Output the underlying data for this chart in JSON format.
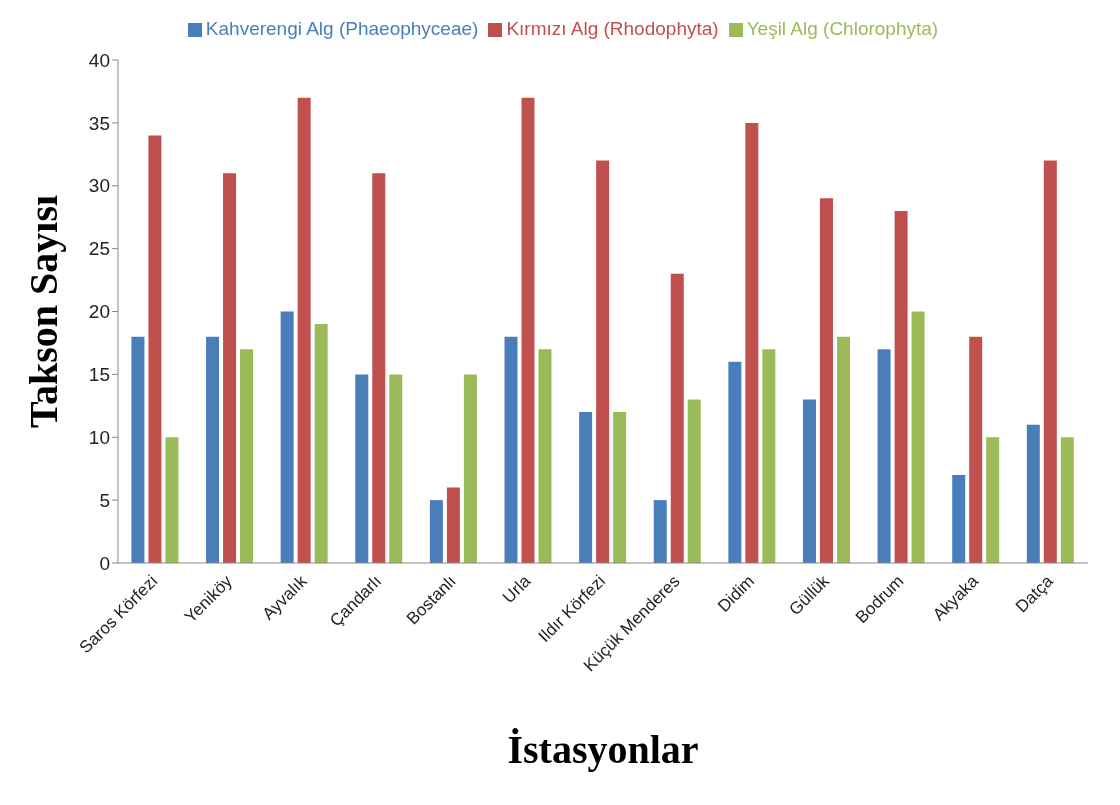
{
  "chart_data": {
    "type": "bar",
    "xlabel": "İstasyonlar",
    "ylabel": "Takson Sayısı",
    "categories": [
      "Saros Körfezi",
      "Yeniköy",
      "Ayvalık",
      "Çandarlı",
      "Bostanlı",
      "Urla",
      "Ildır Körfezi",
      "Küçük Menderes",
      "Didim",
      "Güllük",
      "Bodrum",
      "Akyaka",
      "Datça"
    ],
    "series": [
      {
        "name": "Kahverengi Alg (Phaeophyceae)",
        "color": "#4a7ebb",
        "values": [
          18,
          18,
          20,
          15,
          5,
          18,
          12,
          5,
          16,
          13,
          17,
          7,
          11
        ]
      },
      {
        "name": "Kırmızı Alg (Rhodophyta)",
        "color": "#c0504d",
        "values": [
          34,
          31,
          37,
          31,
          6,
          37,
          32,
          23,
          35,
          29,
          28,
          18,
          32
        ]
      },
      {
        "name": "Yeşil Alg (Chlorophyta)",
        "color": "#9bbb59",
        "values": [
          10,
          17,
          19,
          15,
          15,
          17,
          12,
          13,
          17,
          18,
          20,
          10,
          10
        ]
      }
    ],
    "ylim": [
      0,
      40
    ],
    "yticks": [
      0,
      5,
      10,
      15,
      20,
      25,
      30,
      35,
      40
    ],
    "grid": false,
    "legend": "top"
  }
}
